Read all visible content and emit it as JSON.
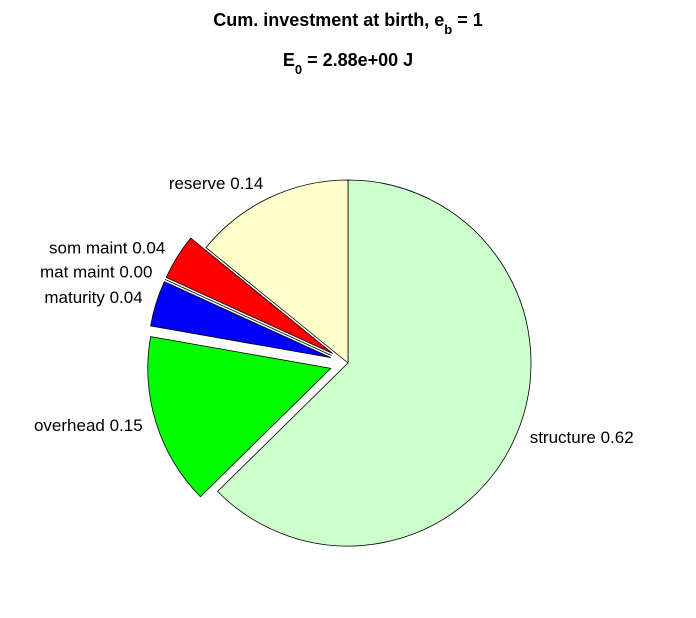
{
  "chart_data": {
    "type": "pie",
    "title_parts": [
      {
        "text": "Cum. investment at birth, e"
      },
      {
        "text": "b",
        "sub": true
      },
      {
        "text": " = 1"
      }
    ],
    "subtitle_parts": [
      {
        "text": "E"
      },
      {
        "text": "0",
        "sub": true
      },
      {
        "text": " = 2.88e+00 J"
      }
    ],
    "categories": [
      "structure",
      "overhead",
      "maturity",
      "mat maint",
      "som maint",
      "reserve"
    ],
    "values": [
      0.62,
      0.15,
      0.04,
      0.0,
      0.04,
      0.14
    ],
    "value_labels": [
      "0.62",
      "0.15",
      "0.04",
      "0.00",
      "0.04",
      "0.14"
    ],
    "colors": [
      "#ccffcc",
      "#00ff00",
      "#0000ff",
      "#ff00ff",
      "#ff0000",
      "#ffffcc"
    ],
    "explode": [
      false,
      true,
      true,
      true,
      true,
      false
    ]
  }
}
